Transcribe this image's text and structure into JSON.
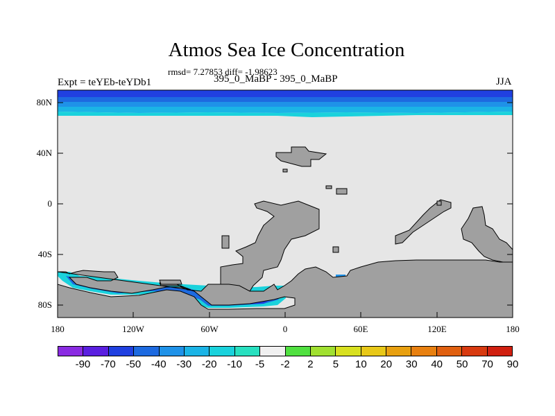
{
  "title": "Atmos Sea Ice Concentration",
  "stats": "rmsd= 7.27853 diff= -1.98623",
  "expt": "Expt = teYEb-teYDb1",
  "subtitle": "395_0_MaBP - 395_0_MaBP",
  "season": "JJA",
  "colors": {
    "ocean_background": "#e6e6e6",
    "land": "#a0a0a0",
    "coastline": "#000000"
  },
  "map": {
    "projection": "cylindrical equidistant",
    "lon_range": [
      -180,
      180
    ],
    "lat_range": [
      -90,
      90
    ],
    "lat_ticks": [
      {
        "value": 80,
        "label": "80N"
      },
      {
        "value": 40,
        "label": "40N"
      },
      {
        "value": 0,
        "label": "0"
      },
      {
        "value": -40,
        "label": "40S"
      },
      {
        "value": -80,
        "label": "80S"
      }
    ],
    "lon_ticks": [
      {
        "value": -180,
        "label": "180"
      },
      {
        "value": -120,
        "label": "120W"
      },
      {
        "value": -60,
        "label": "60W"
      },
      {
        "value": 0,
        "label": "0"
      },
      {
        "value": 60,
        "label": "60E"
      },
      {
        "value": 120,
        "label": "120E"
      },
      {
        "value": 180,
        "label": "180"
      }
    ],
    "arctic_anomaly_bands": [
      {
        "lat_top": 90,
        "lat_bottom": 85,
        "value": -50
      },
      {
        "lat_top": 85,
        "lat_bottom": 81,
        "value": -40
      },
      {
        "lat_top": 81,
        "lat_bottom": 77,
        "value": -30
      },
      {
        "lat_top": 77,
        "lat_bottom": 74,
        "value": -20
      },
      {
        "lat_top": 74,
        "lat_bottom": 70,
        "value": -10
      }
    ]
  },
  "colorbar": {
    "colors": [
      "#8a2be2",
      "#5a1fe0",
      "#2040e0",
      "#1d6ae0",
      "#1f92e8",
      "#1bb4e6",
      "#1ad2dc",
      "#28e0c0",
      "#f0f0f0",
      "#50e040",
      "#a0e030",
      "#d8e020",
      "#e8c818",
      "#e8a010",
      "#e88010",
      "#e06010",
      "#d83a10",
      "#d02010"
    ],
    "labels": [
      "-90",
      "-70",
      "-50",
      "-40",
      "-30",
      "-20",
      "-10",
      "-5",
      "-2",
      "2",
      "5",
      "10",
      "20",
      "30",
      "40",
      "50",
      "70",
      "90"
    ]
  }
}
